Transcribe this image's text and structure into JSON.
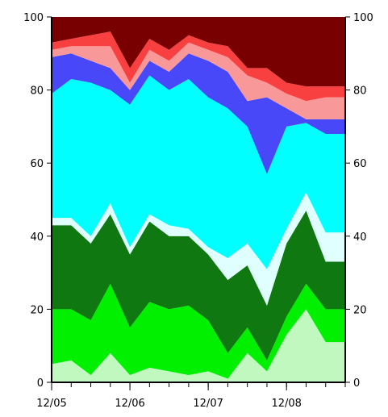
{
  "chart_data": {
    "type": "area",
    "stacked": true,
    "title": "",
    "xlabel": "",
    "ylabel": "",
    "ylim": [
      0,
      100
    ],
    "y_ticks": [
      "0",
      "20",
      "40",
      "60",
      "80",
      "100"
    ],
    "right_axis_ticks": [
      "0",
      "20",
      "40",
      "60",
      "80",
      "100"
    ],
    "x_tick_labels": [
      "12/05",
      "12/06",
      "12/07",
      "12/08"
    ],
    "x_tick_positions": [
      0,
      4,
      8,
      12
    ],
    "x": [
      0,
      1,
      2,
      3,
      4,
      5,
      6,
      7,
      8,
      9,
      10,
      11,
      12,
      13,
      14,
      15
    ],
    "grid": false,
    "legend": "none",
    "cumulative_boundaries": [
      [
        5,
        6,
        2,
        8,
        2,
        4,
        3,
        2,
        3,
        1,
        8,
        3,
        13,
        20,
        11,
        11
      ],
      [
        20,
        20,
        17,
        27,
        15,
        22,
        20,
        21,
        17,
        8,
        15,
        6,
        18,
        27,
        20,
        20
      ],
      [
        43,
        43,
        38,
        46,
        35,
        44,
        40,
        40,
        35,
        28,
        32,
        21,
        38,
        47,
        33,
        33
      ],
      [
        45,
        45,
        40,
        49,
        37,
        46,
        43,
        42,
        37,
        34,
        38,
        31,
        42,
        52,
        41,
        41
      ],
      [
        79,
        83,
        82,
        80,
        76,
        84,
        80,
        83,
        78,
        75,
        70,
        57,
        70,
        71,
        68,
        68
      ],
      [
        89,
        90,
        88,
        86,
        80,
        88,
        85,
        90,
        88,
        85,
        77,
        78,
        75,
        72,
        72,
        72
      ],
      [
        91,
        92,
        92,
        92,
        82,
        91,
        88,
        93,
        91,
        89,
        84,
        82,
        79,
        77,
        78,
        78
      ],
      [
        93,
        94,
        95,
        96,
        86,
        94,
        91,
        95,
        93,
        92,
        86,
        86,
        82,
        81,
        81,
        81
      ],
      [
        100,
        100,
        100,
        100,
        100,
        100,
        100,
        100,
        100,
        100,
        100,
        100,
        100,
        100,
        100,
        100
      ]
    ],
    "series_colors": [
      "#c0f8c0",
      "#00f000",
      "#107810",
      "#e0ffff",
      "#00ffff",
      "#4848f8",
      "#f89898",
      "#f84040",
      "#780000"
    ]
  }
}
